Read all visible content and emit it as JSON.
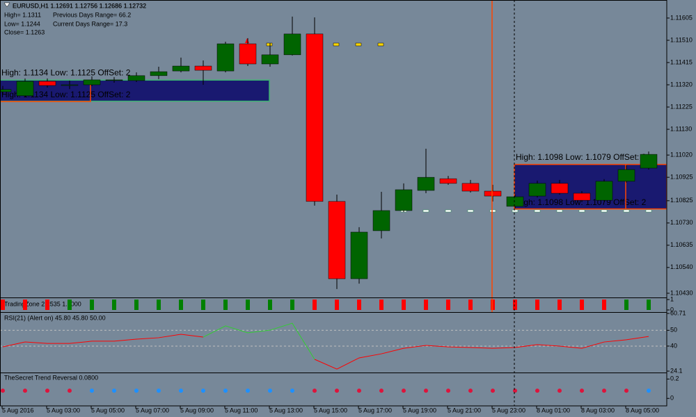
{
  "chart_data": [
    {
      "type": "candlestick",
      "title": "EURUSD,H1  1.12691 1.12756 1.12686 1.12732",
      "annotations": [
        "High= 1.1311",
        "Previous Days Range= 66.2",
        "Low= 1.1244",
        "Current Days Range= 17.3",
        "Close= 1.1263"
      ],
      "categories": [
        "5 Aug 2016",
        null,
        "5 Aug 03:00",
        null,
        "5 Aug 05:00",
        null,
        "5 Aug 07:00",
        null,
        "5 Aug 09:00",
        null,
        "5 Aug 11:00",
        null,
        "5 Aug 13:00",
        null,
        "5 Aug 15:00",
        null,
        "5 Aug 17:00",
        null,
        "5 Aug 19:00",
        null,
        "5 Aug 21:00",
        null,
        "5 Aug 23:00",
        null,
        "8 Aug 01:00",
        null,
        "8 Aug 03:00",
        null,
        "8 Aug 05:00",
        null
      ],
      "open": [
        1.1129,
        1.11273,
        1.11335,
        1.1132,
        1.1132,
        1.11338,
        1.11338,
        1.11359,
        1.11379,
        1.114,
        1.11379,
        1.11495,
        1.11409,
        1.11448,
        1.11537,
        1.10822,
        1.10492,
        1.10697,
        1.10783,
        1.10869,
        1.10919,
        1.10899,
        1.10866,
        1.10801,
        1.10845,
        1.10899,
        1.10857,
        1.10827,
        1.10908,
        1.10964
      ],
      "high": [
        1.11315,
        1.11347,
        1.11347,
        1.11338,
        1.11356,
        1.11353,
        1.11373,
        1.11397,
        1.11436,
        1.11424,
        1.11504,
        1.11519,
        1.11498,
        1.11611,
        1.11608,
        1.10851,
        1.10712,
        1.10863,
        1.10899,
        1.11047,
        1.10931,
        1.10914,
        1.10893,
        1.10851,
        1.10911,
        1.10914,
        1.10866,
        1.10917,
        1.10976,
        1.11035
      ],
      "low": [
        1.1128,
        1.11267,
        1.11308,
        1.11302,
        1.11314,
        1.11329,
        1.11332,
        1.11344,
        1.11373,
        1.1132,
        1.11373,
        1.114,
        1.11397,
        1.11445,
        1.10804,
        1.10448,
        1.10471,
        1.10664,
        1.10777,
        1.10857,
        1.10893,
        1.1086,
        1.10822,
        1.10792,
        1.10839,
        1.10851,
        1.10819,
        1.10822,
        1.10902,
        1.10958
      ],
      "close": [
        1.113,
        1.11335,
        1.11317,
        1.1132,
        1.11341,
        1.11341,
        1.11359,
        1.11376,
        1.114,
        1.11382,
        1.11495,
        1.11409,
        1.11448,
        1.11537,
        1.10822,
        1.10492,
        1.10691,
        1.10783,
        1.10872,
        1.10925,
        1.10899,
        1.10866,
        1.10845,
        1.10842,
        1.10899,
        1.10857,
        1.10827,
        1.10908,
        1.10958,
        1.11023
      ],
      "up_color": "#006400",
      "down_color": "#ff0000",
      "zones": [
        {
          "text": "High: 1.1134  Low: 1.1125  OffSet: 2",
          "high": 1.1134,
          "low": 1.1125
        },
        {
          "text": "High: 1.1098  Low: 1.1079  OffSet: 2",
          "high": 1.1098,
          "low": 1.1079
        }
      ],
      "zone_color": "#191970",
      "ylim": [
        1.10412,
        1.11682
      ],
      "yticks": [
        1.11605,
        {
          "value": 1.1151,
          "label": "1.11510"
        },
        1.11415,
        {
          "value": 1.1132,
          "label": "1.11320"
        },
        1.11225,
        {
          "value": 1.1113,
          "label": "1.11130"
        },
        {
          "value": 1.1102,
          "label": "1.11020"
        },
        1.10925,
        1.10825,
        {
          "value": 1.1073,
          "label": "1.10730"
        },
        1.10635,
        {
          "value": 1.1054,
          "label": "1.10540"
        },
        {
          "value": 1.1043,
          "label": "1.10430"
        }
      ]
    },
    {
      "type": "bar",
      "title": "TradingZone 2.2535 1.0000",
      "values": [
        1,
        1,
        1,
        1,
        1,
        1,
        1,
        1,
        1,
        1,
        1,
        1,
        1,
        1,
        1,
        1,
        1,
        1,
        1,
        1,
        1,
        1,
        1,
        1,
        1,
        1,
        1,
        1,
        1,
        1
      ],
      "colors": [
        "#ff0000",
        "#ff0000",
        "#ff0000",
        "#008000",
        "#008000",
        "#008000",
        "#008000",
        "#008000",
        "#008000",
        "#008000",
        "#008000",
        "#008000",
        "#008000",
        "#008000",
        "#ff0000",
        "#ff0000",
        "#ff0000",
        "#ff0000",
        "#ff0000",
        "#ff0000",
        "#ff0000",
        "#ff0000",
        "#ff0000",
        "#ff0000",
        "#ff0000",
        "#ff0000",
        "#ff0000",
        "#ff0000",
        "#008000",
        "#008000"
      ],
      "ylim": [
        0,
        1
      ],
      "yticks": [
        0,
        1
      ]
    },
    {
      "type": "line",
      "title": "RSI(21) (Alert on) 45.80 45.80 50.00",
      "series": [
        {
          "color": "#ff0000",
          "values": [
            39.5,
            42.6,
            41.7,
            41.7,
            43.1,
            43.1,
            44.4,
            45.3,
            47.5,
            45.7,
            null,
            null,
            null,
            null,
            31.6,
            25.4,
            32.5,
            35.1,
            38.6,
            40.4,
            39.5,
            39.1,
            38.6,
            39.1,
            40.9,
            40.0,
            38.6,
            42.6,
            44.0,
            46.1
          ]
        },
        {
          "color": "#32cd32",
          "values": [
            null,
            null,
            null,
            null,
            null,
            null,
            null,
            null,
            null,
            45.7,
            52.8,
            48.4,
            50.1,
            54.5,
            31.6,
            null,
            null,
            null,
            null,
            null,
            null,
            null,
            null,
            null,
            null,
            null,
            null,
            null,
            null,
            null
          ]
        }
      ],
      "levels": [
        50,
        40
      ],
      "ylim": [
        24.1,
        60.71
      ],
      "yticks": [
        60.71,
        50,
        40,
        24.1
      ]
    },
    {
      "type": "dots",
      "title": "TheSecret Trend Reversal 0.0800",
      "values": [
        0.08,
        0.08,
        0.08,
        0.08,
        0.08,
        0.08,
        0.08,
        0.08,
        0.08,
        0.08,
        0.08,
        0.08,
        0.08,
        0.08,
        0.08,
        0.08,
        0.08,
        0.08,
        0.08,
        0.08,
        0.08,
        0.08,
        0.08,
        0.08,
        0.08,
        0.08,
        0.08,
        0.08,
        0.08,
        0.08
      ],
      "colors": [
        "#dc143c",
        "#dc143c",
        "#dc143c",
        "#dc143c",
        "#1e90ff",
        "#1e90ff",
        "#1e90ff",
        "#1e90ff",
        "#1e90ff",
        "#1e90ff",
        "#1e90ff",
        "#1e90ff",
        "#1e90ff",
        "#1e90ff",
        "#dc143c",
        "#dc143c",
        "#dc143c",
        "#dc143c",
        "#dc143c",
        "#dc143c",
        "#dc143c",
        "#dc143c",
        "#dc143c",
        "#dc143c",
        "#dc143c",
        "#dc143c",
        "#dc143c",
        "#dc143c",
        "#dc143c",
        "#1e90ff"
      ],
      "ylim": [
        -0.07,
        0.26
      ],
      "yticks": [
        0,
        0.2
      ]
    }
  ]
}
